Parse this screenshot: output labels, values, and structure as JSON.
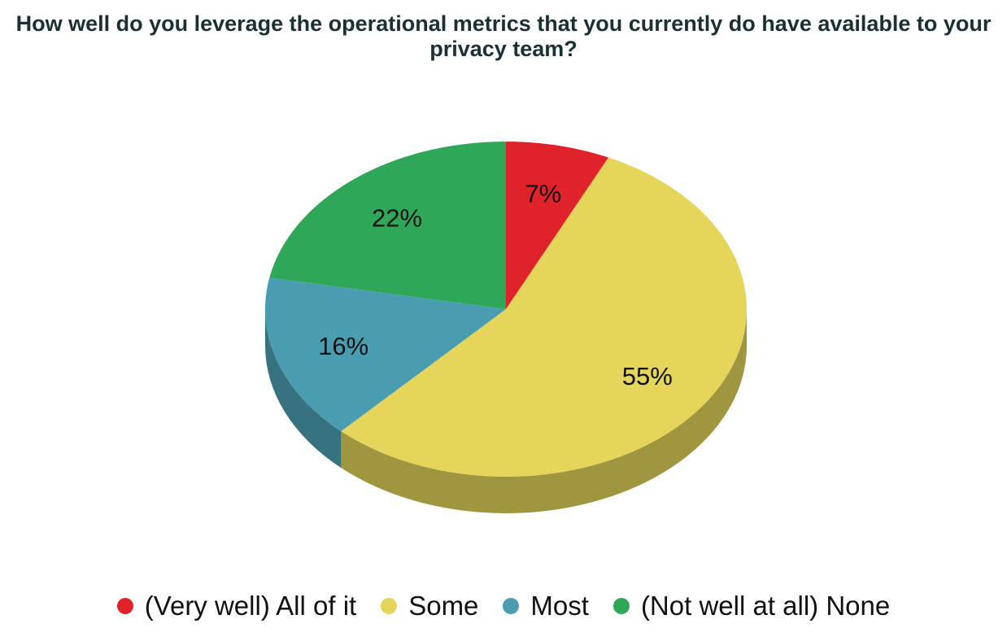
{
  "chart_data": {
    "type": "pie",
    "title": "How well do you leverage the operational metrics that you currently do have available to your privacy team?",
    "style": "3d",
    "legend_position": "bottom",
    "slices": [
      {
        "label": "(Very well) All of it",
        "value": 7,
        "display": "7%",
        "color": "#e0232b",
        "side_color": "#9c1a1f"
      },
      {
        "label": "Some",
        "value": 55,
        "display": "55%",
        "color": "#e5d55a",
        "side_color": "#a09640"
      },
      {
        "label": "Most",
        "value": 16,
        "display": "16%",
        "color": "#4a9db0",
        "side_color": "#36727f"
      },
      {
        "label": "(Not well at all) None",
        "value": 22,
        "display": "22%",
        "color": "#2ea858",
        "side_color": "#20763e"
      }
    ]
  }
}
